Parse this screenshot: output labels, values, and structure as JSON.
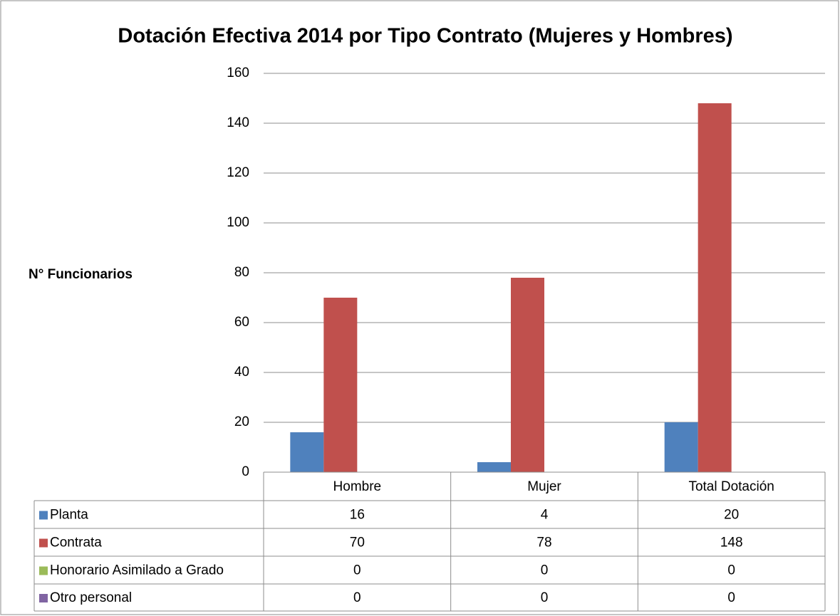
{
  "chart_data": {
    "type": "bar",
    "title": "Dotación Efectiva 2014 por Tipo Contrato (Mujeres y Hombres)",
    "y_label": "N° Funcionarios",
    "categories": [
      "Hombre",
      "Mujer",
      "Total Dotación"
    ],
    "series": [
      {
        "name": "Planta",
        "color": "#4f81bd",
        "values": [
          16,
          4,
          20
        ]
      },
      {
        "name": "Contrata",
        "color": "#c0504d",
        "values": [
          70,
          78,
          148
        ]
      },
      {
        "name": "Honorario Asimilado a Grado",
        "color": "#9bbb59",
        "values": [
          0,
          0,
          0
        ]
      },
      {
        "name": "Otro personal",
        "color": "#8064a2",
        "values": [
          0,
          0,
          0
        ]
      }
    ],
    "ylim": [
      0,
      160
    ],
    "yticks": [
      0,
      20,
      40,
      60,
      80,
      100,
      120,
      140,
      160
    ],
    "grid": true,
    "legend": "data-table"
  }
}
